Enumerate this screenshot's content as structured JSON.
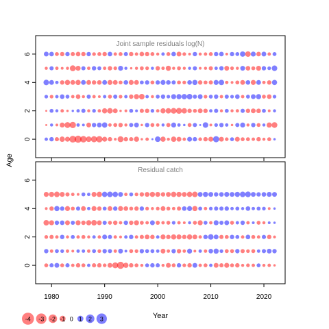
{
  "ylabel": "Age",
  "xlabel": "Year",
  "colors": {
    "positive": "#0000ff",
    "negative": "#ff0000",
    "axis": "#000000",
    "title": "#7f7f7f"
  },
  "legend": {
    "position": "bottom-left",
    "values": [
      -4,
      -3,
      -2,
      -1,
      0,
      1,
      2,
      3
    ],
    "labels": [
      "-4",
      "-3",
      "-2",
      "-1",
      "0",
      "1",
      "2",
      "3"
    ]
  },
  "chart_data": [
    {
      "type": "bubble",
      "title": "Joint sample residuals log(N)",
      "xlim": [
        1977,
        2024
      ],
      "ylim": [
        -1.3,
        7.3
      ],
      "x_ticks": [
        1980,
        1990,
        2000,
        2010,
        2020
      ],
      "x_tick_labels": [],
      "y_ticks": [
        0,
        2,
        4,
        6
      ],
      "y_tick_labels": [
        "0",
        "2",
        "4",
        "6"
      ],
      "x": [
        1979,
        1980,
        1981,
        1982,
        1983,
        1984,
        1985,
        1986,
        1987,
        1988,
        1989,
        1990,
        1991,
        1992,
        1993,
        1994,
        1995,
        1996,
        1997,
        1998,
        1999,
        2000,
        2001,
        2002,
        2003,
        2004,
        2005,
        2006,
        2007,
        2008,
        2009,
        2010,
        2011,
        2012,
        2013,
        2014,
        2015,
        2016,
        2017,
        2018,
        2019,
        2020,
        2021,
        2022
      ],
      "ages": [
        0,
        1,
        2,
        3,
        4,
        5,
        6
      ],
      "residuals": [
        [
          0.6,
          1.0,
          -0.9,
          -1.5,
          -1.3,
          -2.4,
          -2.6,
          -2.2,
          -1.6,
          -2.0,
          -2.1,
          -1.3,
          -1.0,
          -0.4,
          -1.8,
          -1.0,
          -0.9,
          -1.4,
          -0.3,
          -0.6,
          0.2,
          1.6,
          -1.4,
          -0.5,
          -1.5,
          -1.2,
          -0.6,
          1.2,
          1.0,
          -0.7,
          -1.0,
          -1.3,
          2.0,
          -1.2,
          -0.7,
          0.8,
          -1.2,
          -0.8,
          -0.8,
          -0.6,
          -1.0,
          -0.5,
          -0.8,
          0.3
        ],
        [
          -0.2,
          0.5,
          -0.4,
          -1.3,
          -1.8,
          -2.1,
          0.6,
          0.4,
          -1.2,
          1.0,
          1.2,
          1.5,
          -0.6,
          -0.8,
          -1.0,
          -0.5,
          0.9,
          1.2,
          -0.3,
          1.0,
          -0.8,
          -0.6,
          0.5,
          -0.9,
          1.3,
          0.6,
          0.3,
          -0.8,
          0.9,
          0.2,
          1.6,
          -0.4,
          0.7,
          1.0,
          0.6,
          -0.3,
          0.9,
          1.3,
          -0.5,
          1.0,
          -0.8,
          0.5,
          -1.4,
          -1.7
        ],
        [
          -0.2,
          0.8,
          0.5,
          -0.6,
          -0.3,
          0.3,
          0.6,
          0.9,
          -0.5,
          0.7,
          -0.6,
          -1.4,
          -1.6,
          -1.2,
          -0.3,
          -0.4,
          0.8,
          0.4,
          -0.9,
          -1.0,
          0.7,
          -0.6,
          -1.4,
          -1.5,
          -1.7,
          -1.8,
          -1.5,
          -1.0,
          -0.8,
          -1.2,
          -1.0,
          0.6,
          0.9,
          -0.5,
          0.8,
          -0.5,
          -0.6,
          0.9,
          -1.0,
          -1.2,
          -1.1,
          0.8,
          -0.4,
          0.5
        ],
        [
          0.7,
          -0.7,
          0.6,
          1.1,
          0.8,
          -0.6,
          -1.1,
          -0.5,
          0.9,
          -0.6,
          -0.4,
          0.6,
          -0.8,
          0.9,
          -0.7,
          0.6,
          -1.0,
          -1.4,
          -1.6,
          0.6,
          -0.5,
          0.8,
          1.0,
          0.7,
          1.3,
          1.4,
          1.5,
          1.6,
          0.9,
          1.2,
          -0.7,
          0.8,
          1.0,
          -0.6,
          0.9,
          0.7,
          1.1,
          -0.6,
          0.8,
          1.2,
          1.4,
          -0.8,
          -1.1,
          0.7
        ],
        [
          1.6,
          1.2,
          0.6,
          -1.0,
          -1.4,
          -1.2,
          -1.4,
          1.2,
          -1.2,
          -1.0,
          -1.1,
          1.2,
          -1.3,
          -1.2,
          -0.8,
          1.1,
          -1.3,
          -1.2,
          0.8,
          1.0,
          -0.8,
          1.0,
          1.3,
          1.1,
          0.9,
          -0.8,
          -0.7,
          1.1,
          1.4,
          -1.0,
          -0.8,
          -0.9,
          1.3,
          1.5,
          -0.6,
          -0.4,
          -0.8,
          -1.2,
          1.1,
          -1.3,
          1.2,
          -0.6,
          -1.0,
          1.4
        ],
        [
          -0.5,
          0.9,
          -0.6,
          -0.4,
          -0.5,
          -1.8,
          -1.3,
          0.9,
          -0.6,
          1.0,
          0.8,
          -0.6,
          -1.0,
          -0.7,
          1.3,
          0.5,
          -0.3,
          -0.5,
          -0.8,
          -0.7,
          0.5,
          -1.0,
          -0.6,
          -1.4,
          -0.5,
          -0.8,
          -0.5,
          0.5,
          0.9,
          -0.4,
          -0.5,
          -0.9,
          0.6,
          1.0,
          -1.2,
          -0.7,
          -0.5,
          1.2,
          -1.1,
          -0.8,
          -1.3,
          1.0,
          0.7,
          1.6
        ],
        [
          1.2,
          1.1,
          -0.8,
          -1.0,
          1.0,
          -0.9,
          -1.1,
          -1.0,
          1.0,
          -0.7,
          -0.8,
          -1.0,
          1.1,
          -0.6,
          -0.8,
          0.9,
          -1.0,
          -0.6,
          -1.1,
          -1.0,
          -0.8,
          -0.5,
          0.6,
          -0.8,
          1.1,
          -1.2,
          -0.7,
          -0.4,
          1.0,
          -0.5,
          -0.6,
          -0.8,
          1.0,
          1.1,
          -0.4,
          1.0,
          0.8,
          1.5,
          -1.6,
          1.3,
          -1.1,
          1.2,
          -0.6,
          0.8
        ]
      ]
    },
    {
      "type": "bubble",
      "title": "Residual catch",
      "xlim": [
        1977,
        2024
      ],
      "ylim": [
        -1.3,
        7.3
      ],
      "x_ticks": [
        1980,
        1990,
        2000,
        2010,
        2020
      ],
      "x_tick_labels": [
        "1980",
        "1990",
        "2000",
        "2010",
        "2020"
      ],
      "y_ticks": [
        0,
        2,
        4,
        6
      ],
      "y_tick_labels": [
        "0",
        "2",
        "4",
        "6"
      ],
      "x": [
        1979,
        1980,
        1981,
        1982,
        1983,
        1984,
        1985,
        1986,
        1987,
        1988,
        1989,
        1990,
        1991,
        1992,
        1993,
        1994,
        1995,
        1996,
        1997,
        1998,
        1999,
        2000,
        2001,
        2002,
        2003,
        2004,
        2005,
        2006,
        2007,
        2008,
        2009,
        2010,
        2011,
        2012,
        2013,
        2014,
        2015,
        2016,
        2017,
        2018,
        2019,
        2020,
        2021,
        2022
      ],
      "ages": [
        0,
        1,
        2,
        3,
        4,
        5
      ],
      "residuals": [
        [
          -0.8,
          0.9,
          1.2,
          -0.8,
          0.9,
          -0.6,
          -1.0,
          -0.8,
          0.6,
          -0.9,
          -1.0,
          -0.7,
          -1.2,
          -1.8,
          -2.6,
          -1.4,
          -1.0,
          -0.8,
          -0.5,
          0.8,
          1.0,
          0.9,
          -0.5,
          -1.2,
          -0.8,
          1.0,
          -0.7,
          -1.0,
          1.2,
          -0.6,
          -0.8,
          0.6,
          -1.2,
          -0.9,
          -1.3,
          -0.8,
          -1.0,
          -0.5,
          -0.7,
          -0.6,
          0.8,
          -0.5,
          -0.6,
          -0.3
        ],
        [
          1.0,
          -0.6,
          0.8,
          0.7,
          -0.6,
          -0.4,
          0.6,
          0.6,
          -0.6,
          0.8,
          -0.7,
          1.0,
          0.9,
          -0.6,
          1.2,
          0.4,
          -0.8,
          -0.7,
          1.0,
          0.8,
          0.8,
          0.6,
          -1.2,
          -0.6,
          1.0,
          -1.0,
          -0.6,
          1.3,
          -0.4,
          0.6,
          -0.6,
          1.1,
          1.4,
          0.7,
          -0.8,
          -0.8,
          1.0,
          -0.9,
          -0.7,
          -0.8,
          0.6,
          0.9,
          1.2,
          1.0
        ],
        [
          -0.7,
          -0.9,
          -0.6,
          1.0,
          -0.5,
          0.8,
          -0.6,
          -0.8,
          -0.5,
          0.6,
          -0.6,
          1.2,
          0.9,
          -0.6,
          -0.4,
          0.6,
          1.0,
          -0.6,
          -0.9,
          -1.2,
          -1.0,
          0.6,
          -1.3,
          -1.0,
          -1.4,
          -1.3,
          -1.0,
          -1.4,
          -1.2,
          -0.6,
          1.0,
          1.6,
          1.2,
          -0.9,
          -0.8,
          1.0,
          0.8,
          -0.6,
          1.1,
          -0.8,
          -0.6,
          0.9,
          -1.0,
          -0.4
        ],
        [
          -1.6,
          -1.3,
          1.0,
          1.1,
          -1.2,
          0.9,
          -1.3,
          -1.0,
          -1.4,
          -1.6,
          -1.2,
          0.9,
          -0.8,
          -1.0,
          -0.6,
          1.0,
          -1.0,
          -1.3,
          -0.8,
          -0.6,
          1.2,
          -0.9,
          -0.6,
          -0.8,
          0.7,
          -0.6,
          -0.4,
          0.5,
          -0.8,
          -1.3,
          0.8,
          -0.6,
          1.3,
          0.9,
          1.2,
          -0.8,
          0.6,
          1.0,
          -0.6,
          0.4,
          -0.8,
          -0.5,
          0.4,
          0.3
        ],
        [
          -0.4,
          -1.0,
          1.4,
          1.0,
          -1.3,
          -0.8,
          0.9,
          -1.2,
          0.6,
          -1.3,
          -1.0,
          0.8,
          -1.2,
          1.0,
          -1.3,
          -1.1,
          -0.8,
          -1.0,
          1.0,
          -0.7,
          -0.5,
          -0.7,
          -1.2,
          -0.8,
          -0.6,
          -0.9,
          1.1,
          1.3,
          -1.4,
          0.8,
          -0.6,
          0.7,
          0.9,
          0.9,
          1.0,
          0.6,
          0.8,
          0.5,
          1.1,
          0.6,
          0.8,
          0.7,
          -0.4,
          0.3
        ],
        [
          -1.3,
          -1.4,
          -1.6,
          -1.3,
          -0.9,
          -0.6,
          -0.4,
          0.8,
          0.6,
          -1.3,
          -1.5,
          1.5,
          1.6,
          1.5,
          1.2,
          -0.6,
          0.8,
          -0.7,
          -1.0,
          -1.2,
          -1.4,
          -1.3,
          -1.0,
          -1.2,
          -1.5,
          -1.4,
          -1.2,
          -1.5,
          -1.6,
          1.2,
          1.4,
          1.2,
          1.0,
          1.1,
          1.3,
          1.2,
          1.4,
          1.6,
          1.7,
          1.2,
          1.0,
          1.1,
          1.3,
          1.2
        ]
      ]
    }
  ]
}
